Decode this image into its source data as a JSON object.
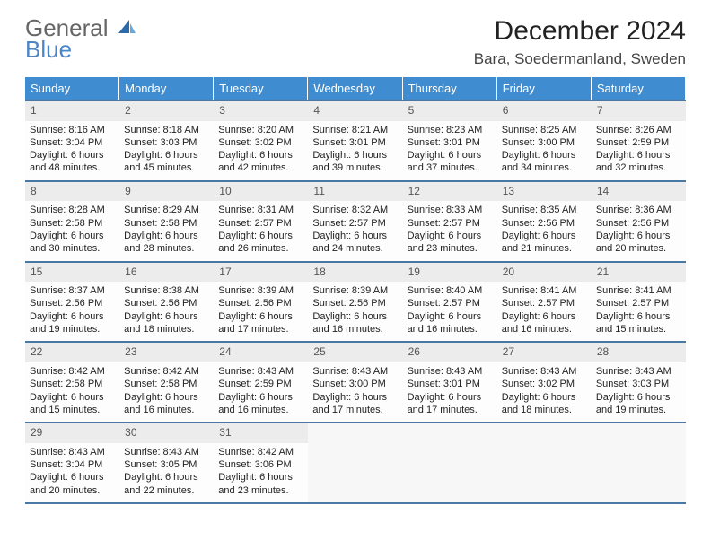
{
  "brand": {
    "name_top": "General",
    "name_bottom": "Blue"
  },
  "title": "December 2024",
  "location": "Bara, Soedermanland, Sweden",
  "colors": {
    "header_bg": "#3f8dd0",
    "header_text": "#ffffff",
    "rule": "#4a78a5",
    "daynum_bg": "#ececec",
    "logo_gray": "#666666",
    "logo_blue": "#4a86c5",
    "page_bg": "#ffffff",
    "text": "#222222"
  },
  "weekday_headers": [
    "Sunday",
    "Monday",
    "Tuesday",
    "Wednesday",
    "Thursday",
    "Friday",
    "Saturday"
  ],
  "weeks": [
    [
      {
        "day": "1",
        "sunrise": "Sunrise: 8:16 AM",
        "sunset": "Sunset: 3:04 PM",
        "daylight": "Daylight: 6 hours and 48 minutes."
      },
      {
        "day": "2",
        "sunrise": "Sunrise: 8:18 AM",
        "sunset": "Sunset: 3:03 PM",
        "daylight": "Daylight: 6 hours and 45 minutes."
      },
      {
        "day": "3",
        "sunrise": "Sunrise: 8:20 AM",
        "sunset": "Sunset: 3:02 PM",
        "daylight": "Daylight: 6 hours and 42 minutes."
      },
      {
        "day": "4",
        "sunrise": "Sunrise: 8:21 AM",
        "sunset": "Sunset: 3:01 PM",
        "daylight": "Daylight: 6 hours and 39 minutes."
      },
      {
        "day": "5",
        "sunrise": "Sunrise: 8:23 AM",
        "sunset": "Sunset: 3:01 PM",
        "daylight": "Daylight: 6 hours and 37 minutes."
      },
      {
        "day": "6",
        "sunrise": "Sunrise: 8:25 AM",
        "sunset": "Sunset: 3:00 PM",
        "daylight": "Daylight: 6 hours and 34 minutes."
      },
      {
        "day": "7",
        "sunrise": "Sunrise: 8:26 AM",
        "sunset": "Sunset: 2:59 PM",
        "daylight": "Daylight: 6 hours and 32 minutes."
      }
    ],
    [
      {
        "day": "8",
        "sunrise": "Sunrise: 8:28 AM",
        "sunset": "Sunset: 2:58 PM",
        "daylight": "Daylight: 6 hours and 30 minutes."
      },
      {
        "day": "9",
        "sunrise": "Sunrise: 8:29 AM",
        "sunset": "Sunset: 2:58 PM",
        "daylight": "Daylight: 6 hours and 28 minutes."
      },
      {
        "day": "10",
        "sunrise": "Sunrise: 8:31 AM",
        "sunset": "Sunset: 2:57 PM",
        "daylight": "Daylight: 6 hours and 26 minutes."
      },
      {
        "day": "11",
        "sunrise": "Sunrise: 8:32 AM",
        "sunset": "Sunset: 2:57 PM",
        "daylight": "Daylight: 6 hours and 24 minutes."
      },
      {
        "day": "12",
        "sunrise": "Sunrise: 8:33 AM",
        "sunset": "Sunset: 2:57 PM",
        "daylight": "Daylight: 6 hours and 23 minutes."
      },
      {
        "day": "13",
        "sunrise": "Sunrise: 8:35 AM",
        "sunset": "Sunset: 2:56 PM",
        "daylight": "Daylight: 6 hours and 21 minutes."
      },
      {
        "day": "14",
        "sunrise": "Sunrise: 8:36 AM",
        "sunset": "Sunset: 2:56 PM",
        "daylight": "Daylight: 6 hours and 20 minutes."
      }
    ],
    [
      {
        "day": "15",
        "sunrise": "Sunrise: 8:37 AM",
        "sunset": "Sunset: 2:56 PM",
        "daylight": "Daylight: 6 hours and 19 minutes."
      },
      {
        "day": "16",
        "sunrise": "Sunrise: 8:38 AM",
        "sunset": "Sunset: 2:56 PM",
        "daylight": "Daylight: 6 hours and 18 minutes."
      },
      {
        "day": "17",
        "sunrise": "Sunrise: 8:39 AM",
        "sunset": "Sunset: 2:56 PM",
        "daylight": "Daylight: 6 hours and 17 minutes."
      },
      {
        "day": "18",
        "sunrise": "Sunrise: 8:39 AM",
        "sunset": "Sunset: 2:56 PM",
        "daylight": "Daylight: 6 hours and 16 minutes."
      },
      {
        "day": "19",
        "sunrise": "Sunrise: 8:40 AM",
        "sunset": "Sunset: 2:57 PM",
        "daylight": "Daylight: 6 hours and 16 minutes."
      },
      {
        "day": "20",
        "sunrise": "Sunrise: 8:41 AM",
        "sunset": "Sunset: 2:57 PM",
        "daylight": "Daylight: 6 hours and 16 minutes."
      },
      {
        "day": "21",
        "sunrise": "Sunrise: 8:41 AM",
        "sunset": "Sunset: 2:57 PM",
        "daylight": "Daylight: 6 hours and 15 minutes."
      }
    ],
    [
      {
        "day": "22",
        "sunrise": "Sunrise: 8:42 AM",
        "sunset": "Sunset: 2:58 PM",
        "daylight": "Daylight: 6 hours and 15 minutes."
      },
      {
        "day": "23",
        "sunrise": "Sunrise: 8:42 AM",
        "sunset": "Sunset: 2:58 PM",
        "daylight": "Daylight: 6 hours and 16 minutes."
      },
      {
        "day": "24",
        "sunrise": "Sunrise: 8:43 AM",
        "sunset": "Sunset: 2:59 PM",
        "daylight": "Daylight: 6 hours and 16 minutes."
      },
      {
        "day": "25",
        "sunrise": "Sunrise: 8:43 AM",
        "sunset": "Sunset: 3:00 PM",
        "daylight": "Daylight: 6 hours and 17 minutes."
      },
      {
        "day": "26",
        "sunrise": "Sunrise: 8:43 AM",
        "sunset": "Sunset: 3:01 PM",
        "daylight": "Daylight: 6 hours and 17 minutes."
      },
      {
        "day": "27",
        "sunrise": "Sunrise: 8:43 AM",
        "sunset": "Sunset: 3:02 PM",
        "daylight": "Daylight: 6 hours and 18 minutes."
      },
      {
        "day": "28",
        "sunrise": "Sunrise: 8:43 AM",
        "sunset": "Sunset: 3:03 PM",
        "daylight": "Daylight: 6 hours and 19 minutes."
      }
    ],
    [
      {
        "day": "29",
        "sunrise": "Sunrise: 8:43 AM",
        "sunset": "Sunset: 3:04 PM",
        "daylight": "Daylight: 6 hours and 20 minutes."
      },
      {
        "day": "30",
        "sunrise": "Sunrise: 8:43 AM",
        "sunset": "Sunset: 3:05 PM",
        "daylight": "Daylight: 6 hours and 22 minutes."
      },
      {
        "day": "31",
        "sunrise": "Sunrise: 8:42 AM",
        "sunset": "Sunset: 3:06 PM",
        "daylight": "Daylight: 6 hours and 23 minutes."
      },
      null,
      null,
      null,
      null
    ]
  ]
}
